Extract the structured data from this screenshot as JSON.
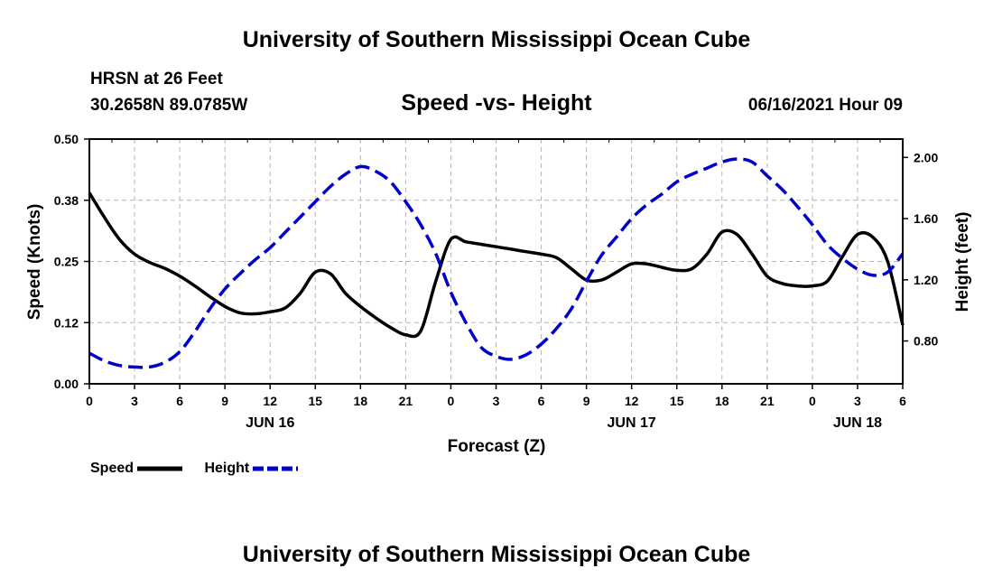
{
  "header": {
    "title": "University of Southern Mississippi Ocean Cube",
    "station": "HRSN at 26 Feet",
    "coordinates": "30.2658N  89.0785W",
    "chart_title": "Speed -vs- Height",
    "datetime": "06/16/2021 Hour 09"
  },
  "footer": {
    "title": "University of Southern Mississippi Ocean Cube"
  },
  "legend": {
    "speed_label": "Speed",
    "height_label": "Height"
  },
  "colors": {
    "speed": "#000000",
    "height": "#0000cc",
    "grid": "#b4b4b4"
  },
  "chart_data": {
    "type": "line",
    "title": "Speed -vs- Height",
    "xlabel": "Forecast (Z)",
    "ylabel_left": "Speed (Knots)",
    "ylabel_right": "Height (feet)",
    "x_range_hours": [
      0,
      54
    ],
    "x_tick_hours": [
      0,
      3,
      6,
      9,
      12,
      15,
      18,
      21,
      24,
      27,
      30,
      33,
      36,
      39,
      42,
      45,
      48,
      51,
      54
    ],
    "x_tick_labels": [
      "0",
      "3",
      "6",
      "9",
      "12",
      "15",
      "18",
      "21",
      "0",
      "3",
      "6",
      "9",
      "12",
      "15",
      "18",
      "21",
      "0",
      "3",
      "6"
    ],
    "day_labels": [
      {
        "hour": 12,
        "label": "JUN 16"
      },
      {
        "hour": 36,
        "label": "JUN 17"
      },
      {
        "hour": 51,
        "label": "JUN 18"
      }
    ],
    "ylim_left": [
      0,
      0.5
    ],
    "y_ticks_left": [
      0,
      0.125,
      0.25,
      0.375,
      0.5
    ],
    "y_tick_labels_left": [
      "0.00",
      "0.12",
      "0.25",
      "0.38",
      "0.50"
    ],
    "ylim_right": [
      0.52,
      2.12
    ],
    "y_ticks_right": [
      0.8,
      1.2,
      1.6,
      2.0
    ],
    "y_tick_labels_right": [
      "0.80",
      "1.20",
      "1.60",
      "2.00"
    ],
    "grid": true,
    "series": [
      {
        "name": "Speed",
        "axis": "left",
        "style": "solid",
        "x": [
          0,
          1,
          2,
          3,
          4,
          5,
          6,
          7,
          8,
          9,
          10,
          11,
          12,
          13,
          14,
          15,
          16,
          17,
          18,
          19,
          20,
          21,
          22,
          23,
          24,
          25,
          26,
          27,
          28,
          29,
          30,
          31,
          32,
          33,
          34,
          35,
          36,
          37,
          38,
          39,
          40,
          41,
          42,
          43,
          44,
          45,
          46,
          47,
          48,
          49,
          50,
          51,
          52,
          53,
          54
        ],
        "values": [
          0.39,
          0.34,
          0.295,
          0.265,
          0.248,
          0.236,
          0.22,
          0.2,
          0.178,
          0.158,
          0.145,
          0.143,
          0.147,
          0.155,
          0.185,
          0.228,
          0.225,
          0.185,
          0.158,
          0.135,
          0.115,
          0.1,
          0.108,
          0.21,
          0.295,
          0.29,
          0.285,
          0.28,
          0.275,
          0.27,
          0.265,
          0.258,
          0.235,
          0.212,
          0.212,
          0.228,
          0.245,
          0.245,
          0.238,
          0.232,
          0.235,
          0.265,
          0.31,
          0.305,
          0.265,
          0.22,
          0.205,
          0.2,
          0.2,
          0.21,
          0.26,
          0.305,
          0.3,
          0.25,
          0.12
        ]
      },
      {
        "name": "Height",
        "axis": "right",
        "style": "dashed",
        "x": [
          0,
          1,
          2,
          3,
          4,
          5,
          6,
          7,
          8,
          9,
          10,
          11,
          12,
          13,
          14,
          15,
          16,
          17,
          18,
          19,
          20,
          21,
          22,
          23,
          24,
          25,
          26,
          27,
          28,
          29,
          30,
          31,
          32,
          33,
          34,
          35,
          36,
          37,
          38,
          39,
          40,
          41,
          42,
          43,
          44,
          45,
          46,
          47,
          48,
          49,
          50,
          51,
          52,
          53,
          54
        ],
        "values": [
          0.72,
          0.67,
          0.64,
          0.63,
          0.63,
          0.66,
          0.73,
          0.86,
          1.01,
          1.14,
          1.24,
          1.33,
          1.41,
          1.51,
          1.61,
          1.71,
          1.81,
          1.89,
          1.94,
          1.91,
          1.84,
          1.71,
          1.56,
          1.37,
          1.12,
          0.92,
          0.76,
          0.7,
          0.68,
          0.71,
          0.78,
          0.88,
          1.01,
          1.19,
          1.36,
          1.48,
          1.6,
          1.69,
          1.76,
          1.84,
          1.89,
          1.93,
          1.97,
          1.99,
          1.97,
          1.88,
          1.79,
          1.68,
          1.56,
          1.43,
          1.34,
          1.27,
          1.23,
          1.25,
          1.37
        ]
      }
    ]
  }
}
